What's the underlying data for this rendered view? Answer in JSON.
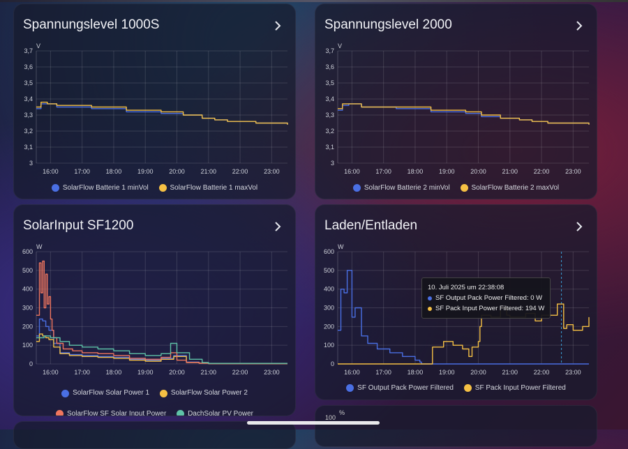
{
  "cards": [
    {
      "title": "Spannungslevel 1000S",
      "unit": "V",
      "legend": [
        "SolarFlow Batterie 1 minVol",
        "SolarFlow Batterie 1 maxVol"
      ]
    },
    {
      "title": "Spannungslevel 2000",
      "unit": "V",
      "legend": [
        "SolarFlow Batterie 2 minVol",
        "SolarFlow Batterie 2 maxVol"
      ]
    },
    {
      "title": "SolarInput SF1200",
      "unit": "W",
      "legend": [
        "SolarFlow Solar Power 1",
        "SolarFlow Solar Power 2",
        "SolarFlow SF Solar Input Power",
        "DachSolar PV Power"
      ]
    },
    {
      "title": "Laden/Entladen",
      "unit": "W",
      "legend": [
        "SF Output Pack Power Filtered",
        "SF Pack Input Power Filtered"
      ],
      "tooltip": {
        "title": "10. Juli 2025 um 22:38:08",
        "rows": [
          "SF Output Pack Power Filtered: 0 W",
          "SF Pack Input Power Filtered: 194 W"
        ]
      }
    },
    {
      "unit": "%",
      "ytick": "100"
    }
  ],
  "colors": {
    "blue": "#4a6fe3",
    "yellow": "#f5c044",
    "salmon": "#f0765e",
    "teal": "#5fc3a8"
  },
  "chart_data": [
    {
      "type": "line",
      "title": "Spannungslevel 1000S",
      "ylabel": "V",
      "ylim": [
        3,
        3.7
      ],
      "yticks": [
        "3",
        "3,1",
        "3,2",
        "3,3",
        "3,4",
        "3,5",
        "3,6",
        "3,7"
      ],
      "xticks": [
        "16:00",
        "17:00",
        "18:00",
        "19:00",
        "20:00",
        "21:00",
        "22:00",
        "23:00"
      ],
      "xlim": [
        15.55,
        23.5
      ],
      "series": [
        {
          "name": "SolarFlow Batterie 1 minVol",
          "color": "blue",
          "x": [
            15.55,
            15.7,
            15.9,
            16.2,
            17.3,
            18.4,
            19.5,
            20.2,
            20.8,
            21.2,
            21.6,
            22.0,
            22.5,
            23.5
          ],
          "y": [
            3.34,
            3.37,
            3.37,
            3.35,
            3.34,
            3.32,
            3.31,
            3.3,
            3.28,
            3.27,
            3.26,
            3.26,
            3.25,
            3.24
          ]
        },
        {
          "name": "SolarFlow Batterie 1 maxVol",
          "color": "yellow",
          "x": [
            15.55,
            15.7,
            15.9,
            16.2,
            17.3,
            18.4,
            19.5,
            20.2,
            20.8,
            21.2,
            21.6,
            22.0,
            22.5,
            23.5
          ],
          "y": [
            3.35,
            3.38,
            3.37,
            3.36,
            3.35,
            3.33,
            3.32,
            3.3,
            3.28,
            3.27,
            3.26,
            3.26,
            3.25,
            3.24
          ]
        }
      ]
    },
    {
      "type": "line",
      "title": "Spannungslevel 2000",
      "ylabel": "V",
      "ylim": [
        3,
        3.7
      ],
      "yticks": [
        "3",
        "3,1",
        "3,2",
        "3,3",
        "3,4",
        "3,5",
        "3,6",
        "3,7"
      ],
      "xticks": [
        "16:00",
        "17:00",
        "18:00",
        "19:00",
        "20:00",
        "21:00",
        "22:00",
        "23:00"
      ],
      "xlim": [
        15.55,
        23.5
      ],
      "series": [
        {
          "name": "SolarFlow Batterie 2 minVol",
          "color": "blue",
          "x": [
            15.55,
            15.7,
            15.9,
            16.3,
            17.4,
            18.5,
            19.6,
            20.1,
            20.7,
            21.3,
            21.7,
            22.2,
            22.8,
            23.5
          ],
          "y": [
            3.33,
            3.36,
            3.37,
            3.35,
            3.34,
            3.32,
            3.31,
            3.29,
            3.28,
            3.27,
            3.26,
            3.25,
            3.25,
            3.24
          ]
        },
        {
          "name": "SolarFlow Batterie 2 maxVol",
          "color": "yellow",
          "x": [
            15.55,
            15.7,
            15.9,
            16.3,
            17.4,
            18.5,
            19.6,
            20.1,
            20.7,
            21.3,
            21.7,
            22.2,
            22.8,
            23.5
          ],
          "y": [
            3.34,
            3.37,
            3.37,
            3.35,
            3.35,
            3.33,
            3.32,
            3.3,
            3.28,
            3.27,
            3.26,
            3.25,
            3.25,
            3.24
          ]
        }
      ]
    },
    {
      "type": "line",
      "title": "SolarInput SF1200",
      "ylabel": "W",
      "ylim": [
        0,
        600
      ],
      "yticks": [
        "0",
        "100",
        "200",
        "300",
        "400",
        "500",
        "600"
      ],
      "xticks": [
        "16:00",
        "17:00",
        "18:00",
        "19:00",
        "20:00",
        "21:00",
        "22:00",
        "23:00"
      ],
      "xlim": [
        15.55,
        23.5
      ],
      "series": [
        {
          "name": "SolarFlow Solar Power 1",
          "color": "blue",
          "x": [
            15.55,
            15.65,
            15.75,
            15.85,
            15.95,
            16.1,
            16.3,
            16.6,
            17.0,
            17.5,
            18.0,
            18.5,
            19.0,
            19.5,
            19.9,
            20.3,
            20.7,
            21.0,
            23.5
          ],
          "y": [
            150,
            240,
            230,
            200,
            180,
            110,
            60,
            50,
            45,
            40,
            35,
            25,
            20,
            30,
            45,
            10,
            5,
            2,
            2
          ]
        },
        {
          "name": "SolarFlow Solar Power 2",
          "color": "yellow",
          "x": [
            15.55,
            15.65,
            15.75,
            15.85,
            15.95,
            16.1,
            16.3,
            16.6,
            17.0,
            17.5,
            18.0,
            18.5,
            19.0,
            19.5,
            19.9,
            20.3,
            20.7,
            21.0,
            23.5
          ],
          "y": [
            120,
            160,
            150,
            140,
            130,
            90,
            55,
            45,
            40,
            35,
            30,
            20,
            15,
            25,
            40,
            8,
            4,
            2,
            2
          ]
        },
        {
          "name": "SolarFlow SF Solar Input Power",
          "color": "salmon",
          "x": [
            15.55,
            15.65,
            15.7,
            15.75,
            15.8,
            15.85,
            15.9,
            15.95,
            16.0,
            16.05,
            16.1,
            16.2,
            16.4,
            16.7,
            17.0,
            17.5,
            18.0,
            18.5,
            19.0,
            19.5,
            19.8,
            20.0,
            20.3,
            20.7,
            21.0,
            23.5
          ],
          "y": [
            260,
            540,
            380,
            550,
            300,
            480,
            320,
            360,
            240,
            180,
            140,
            110,
            80,
            70,
            60,
            55,
            45,
            30,
            25,
            35,
            60,
            20,
            8,
            4,
            2,
            2
          ]
        },
        {
          "name": "DachSolar PV Power",
          "color": "teal",
          "x": [
            15.55,
            15.8,
            16.0,
            16.3,
            16.6,
            17.0,
            17.5,
            18.0,
            18.5,
            19.0,
            19.5,
            19.8,
            20.0,
            20.4,
            20.8,
            21.0,
            23.5
          ],
          "y": [
            140,
            150,
            140,
            120,
            100,
            90,
            80,
            70,
            55,
            45,
            55,
            110,
            60,
            25,
            8,
            3,
            3
          ]
        }
      ]
    },
    {
      "type": "line",
      "title": "Laden/Entladen",
      "ylabel": "W",
      "ylim": [
        0,
        600
      ],
      "yticks": [
        "0",
        "100",
        "200",
        "300",
        "400",
        "500",
        "600"
      ],
      "xticks": [
        "16:00",
        "17:00",
        "18:00",
        "19:00",
        "20:00",
        "21:00",
        "22:00",
        "23:00"
      ],
      "xlim": [
        15.55,
        23.5
      ],
      "series": [
        {
          "name": "SF Output Pack Power Filtered",
          "color": "blue",
          "x": [
            15.55,
            15.65,
            15.75,
            15.85,
            16.0,
            16.1,
            16.3,
            16.5,
            16.8,
            17.2,
            17.6,
            18.0,
            18.15,
            18.2,
            23.5
          ],
          "y": [
            180,
            400,
            380,
            500,
            250,
            300,
            150,
            110,
            80,
            60,
            40,
            20,
            10,
            0,
            0
          ]
        },
        {
          "name": "SF Pack Input Power Filtered",
          "color": "yellow",
          "x": [
            15.55,
            18.5,
            18.55,
            18.9,
            19.2,
            19.5,
            19.7,
            19.8,
            20.0,
            20.05,
            20.1,
            20.4,
            20.7,
            20.9,
            21.0,
            21.5,
            21.8,
            22.0,
            22.5,
            22.7,
            22.8,
            23.0,
            23.3,
            23.5
          ],
          "y": [
            0,
            0,
            90,
            120,
            100,
            80,
            40,
            90,
            120,
            200,
            260,
            250,
            300,
            260,
            250,
            270,
            230,
            260,
            320,
            190,
            210,
            180,
            200,
            250
          ]
        }
      ],
      "cursor_x": 22.63
    }
  ]
}
